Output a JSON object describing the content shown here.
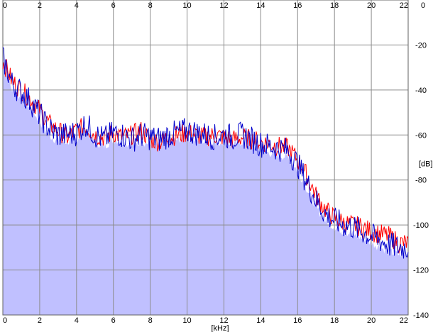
{
  "chart_data": {
    "type": "area",
    "title": "",
    "xlabel": "[kHz]",
    "ylabel": "[dB]",
    "xlim": [
      0,
      22
    ],
    "ylim": [
      -140,
      0
    ],
    "x_ticks": [
      0,
      2,
      4,
      6,
      8,
      10,
      12,
      14,
      16,
      18,
      20,
      22
    ],
    "y_ticks": [
      -20,
      -40,
      -60,
      -80,
      -100,
      -120,
      -140
    ],
    "y_tick_labels": [
      "-20",
      "-40",
      "-60",
      "-80",
      "-100",
      "-120",
      "-140"
    ],
    "extra_top_right_label": "0",
    "grid": true,
    "legend": "none",
    "series": [
      {
        "color": "#ff0000",
        "x": [
          0.0,
          0.5,
          1.0,
          1.5,
          2.0,
          2.5,
          3.0,
          3.5,
          4.0,
          4.5,
          5.0,
          5.5,
          6.0,
          6.5,
          7.0,
          7.5,
          8.0,
          8.5,
          9.0,
          9.5,
          10.0,
          10.5,
          11.0,
          11.5,
          12.0,
          12.5,
          13.0,
          13.5,
          14.0,
          14.5,
          15.0,
          15.5,
          16.0,
          16.5,
          17.0,
          17.5,
          18.0,
          18.5,
          19.0,
          19.5,
          20.0,
          20.5,
          21.0,
          21.5,
          22.0
        ],
        "values": [
          -27,
          -36,
          -40,
          -44,
          -49,
          -55,
          -58,
          -61,
          -58,
          -56,
          -60,
          -61,
          -59,
          -61,
          -60,
          -58,
          -62,
          -63,
          -61,
          -60,
          -59,
          -60,
          -61,
          -60,
          -61,
          -62,
          -61,
          -62,
          -63,
          -64,
          -65,
          -66,
          -71,
          -78,
          -87,
          -93,
          -97,
          -99,
          -100,
          -101,
          -103,
          -104,
          -105,
          -108,
          -108
        ]
      },
      {
        "color": "#0000cc",
        "x": [
          0.0,
          0.5,
          1.0,
          1.5,
          2.0,
          2.5,
          3.0,
          3.5,
          4.0,
          4.5,
          5.0,
          5.5,
          6.0,
          6.5,
          7.0,
          7.5,
          8.0,
          8.5,
          9.0,
          9.5,
          10.0,
          10.5,
          11.0,
          11.5,
          12.0,
          12.5,
          13.0,
          13.5,
          14.0,
          14.5,
          15.0,
          15.5,
          16.0,
          16.5,
          17.0,
          17.5,
          18.0,
          18.5,
          19.0,
          19.5,
          20.0,
          20.5,
          21.0,
          21.5,
          22.0
        ],
        "values": [
          -26,
          -37,
          -41,
          -45,
          -51,
          -57,
          -60,
          -60,
          -59,
          -55,
          -60,
          -62,
          -59,
          -60,
          -62,
          -60,
          -61,
          -62,
          -60,
          -59,
          -58,
          -59,
          -60,
          -61,
          -60,
          -61,
          -60,
          -62,
          -64,
          -65,
          -66,
          -67,
          -73,
          -81,
          -89,
          -95,
          -98,
          -100,
          -101,
          -103,
          -105,
          -107,
          -109,
          -110,
          -110
        ]
      }
    ],
    "fill_color": "#c0c0ff",
    "grid_color": "#8c8c8c"
  }
}
